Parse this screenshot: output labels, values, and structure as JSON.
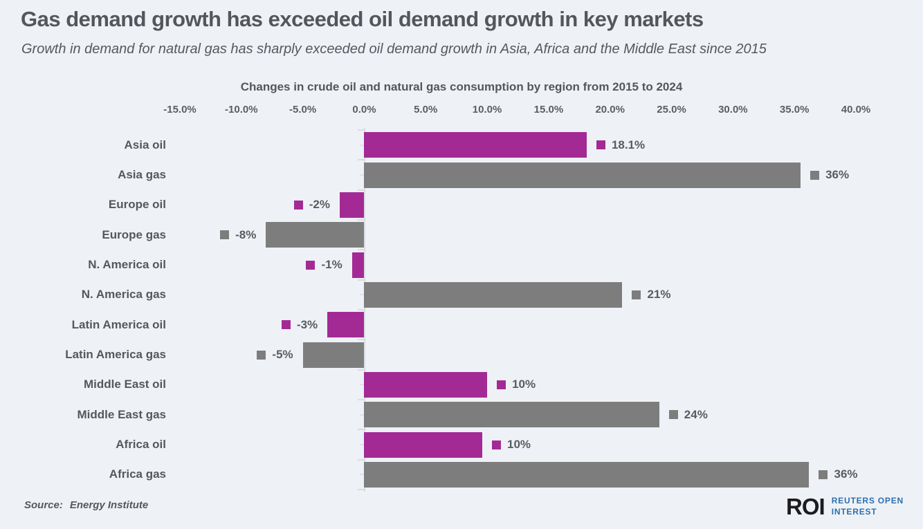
{
  "header": {
    "title": "Gas demand growth has exceeded oil demand growth in key markets",
    "subtitle": "Growth in demand for natural gas has sharply exceeded oil demand growth in Asia, Africa and the Middle East since 2015"
  },
  "footer": {
    "source_prefix": "Source:",
    "source_name": "Energy Institute"
  },
  "logo": {
    "mark": "ROI",
    "line1": "REUTERS OPEN",
    "line2": "INTEREST"
  },
  "chart_data": {
    "type": "bar",
    "orientation": "horizontal",
    "title": "Changes in crude oil and natural gas consumption by region from 2015 to 2024",
    "xlabel": "",
    "ylabel": "",
    "xlim": [
      -15,
      40
    ],
    "unit": "%",
    "grid": false,
    "x_ticks": [
      {
        "value": -15,
        "label": "-15.0%"
      },
      {
        "value": -10,
        "label": "-10.0%"
      },
      {
        "value": -5,
        "label": "-5.0%"
      },
      {
        "value": 0,
        "label": "0.0%"
      },
      {
        "value": 5,
        "label": "5.0%"
      },
      {
        "value": 10,
        "label": "10.0%"
      },
      {
        "value": 15,
        "label": "15.0%"
      },
      {
        "value": 20,
        "label": "20.0%"
      },
      {
        "value": 25,
        "label": "25.0%"
      },
      {
        "value": 30,
        "label": "30.0%"
      },
      {
        "value": 35,
        "label": "35.0%"
      },
      {
        "value": 40,
        "label": "40.0%"
      }
    ],
    "series_colors": {
      "oil": "#a32a95",
      "gas": "#7d7d7d"
    },
    "rows": [
      {
        "label": "Asia oil",
        "series": "oil",
        "value": 18.1,
        "display": "18.1%"
      },
      {
        "label": "Asia gas",
        "series": "gas",
        "value": 35.5,
        "display": "36%"
      },
      {
        "label": "Europe oil",
        "series": "oil",
        "value": -2,
        "display": "-2%"
      },
      {
        "label": "Europe gas",
        "series": "gas",
        "value": -8,
        "display": "-8%"
      },
      {
        "label": "N. America oil",
        "series": "oil",
        "value": -1,
        "display": "-1%"
      },
      {
        "label": "N. America gas",
        "series": "gas",
        "value": 21,
        "display": "21%"
      },
      {
        "label": "Latin America oil",
        "series": "oil",
        "value": -3,
        "display": "-3%"
      },
      {
        "label": "Latin America gas",
        "series": "gas",
        "value": -5,
        "display": "-5%"
      },
      {
        "label": "Middle East oil",
        "series": "oil",
        "value": 10,
        "display": "10%"
      },
      {
        "label": "Middle East gas",
        "series": "gas",
        "value": 24,
        "display": "24%"
      },
      {
        "label": "Africa oil",
        "series": "oil",
        "value": 9.6,
        "display": "10%"
      },
      {
        "label": "Africa gas",
        "series": "gas",
        "value": 36.2,
        "display": "36%"
      }
    ]
  }
}
